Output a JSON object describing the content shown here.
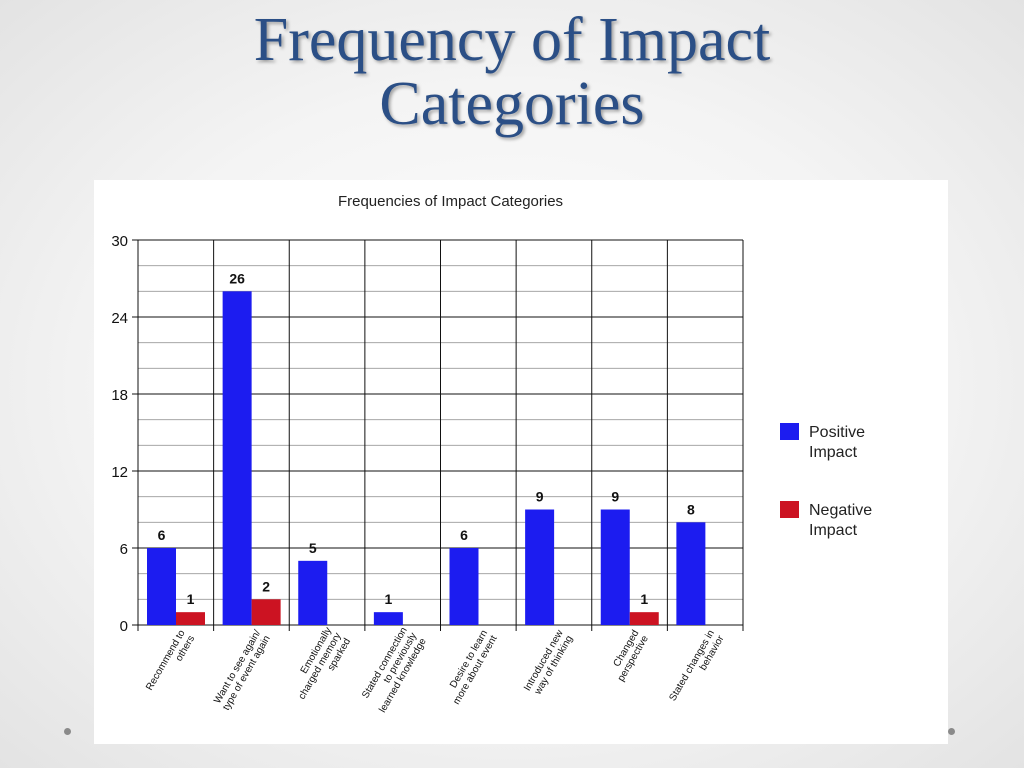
{
  "slide": {
    "title_line1": "Frequency of Impact",
    "title_line2": "Categories"
  },
  "colors": {
    "positive": "#1c1cf0",
    "negative": "#cc1322",
    "title": "#2b4f86"
  },
  "chart_data": {
    "type": "bar",
    "title": "Frequencies of Impact Categories",
    "categories": [
      "Recommend to others",
      "Want to see again/ type of event again",
      "Emotionally charged memory sparked",
      "Stated connection to previously learned knowledge",
      "Desire to learn more about event",
      "Introduced new way of thinking",
      "Changed perspective",
      "Stated changes in behavior"
    ],
    "category_lines": [
      [
        "Recommend to",
        "others"
      ],
      [
        "Want to see again/",
        "type of event again"
      ],
      [
        "Emotionally",
        "charged memory",
        "sparked"
      ],
      [
        "Stated connection",
        "to previously",
        "learned knowledge"
      ],
      [
        "Desire to learn",
        "more about event"
      ],
      [
        "Introduced new",
        "way of thinking"
      ],
      [
        "Changed",
        "perspective"
      ],
      [
        "Stated changes in",
        "behavior"
      ]
    ],
    "series": [
      {
        "name": "Positive Impact",
        "legend_lines": [
          "Positive",
          "Impact"
        ],
        "values": [
          6,
          26,
          5,
          1,
          6,
          9,
          9,
          8
        ]
      },
      {
        "name": "Negative Impact",
        "legend_lines": [
          "Negative",
          "Impact"
        ],
        "values": [
          1,
          2,
          null,
          null,
          null,
          null,
          1,
          null
        ]
      }
    ],
    "ylim": [
      0,
      30
    ],
    "yticks": [
      0,
      6,
      12,
      18,
      24,
      30
    ],
    "grid": true,
    "legend": "right"
  }
}
